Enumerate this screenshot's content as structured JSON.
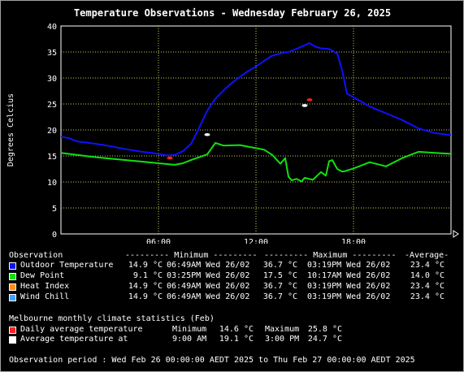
{
  "chart_data": {
    "type": "line",
    "title": "Temperature Observations - Wednesday February 26, 2025",
    "ylabel": "Degrees Celcius",
    "xlabel": "",
    "x_ticks": [
      "06:00",
      "12:00",
      "18:00"
    ],
    "y_ticks": [
      0,
      5,
      10,
      15,
      20,
      25,
      30,
      35,
      40
    ],
    "xlim_hours": [
      0,
      24
    ],
    "ylim": [
      0,
      40
    ],
    "grid": true,
    "background": "#000000",
    "grid_color": "#c8d060",
    "series": [
      {
        "name": "Outdoor Temperature",
        "color": "#1010ff",
        "x": [
          0,
          0.5,
          1,
          2,
          3,
          4,
          5,
          6,
          6.5,
          7,
          7.5,
          8,
          8.5,
          9,
          9.5,
          10,
          10.5,
          11,
          11.5,
          12,
          12.5,
          13,
          13.5,
          14,
          14.5,
          15,
          15.3,
          15.6,
          16,
          16.5,
          17,
          17.3,
          17.6,
          18,
          18.5,
          19,
          20,
          21,
          22,
          23,
          24
        ],
        "values": [
          18.7,
          18.4,
          17.8,
          17.4,
          16.9,
          16.3,
          15.8,
          15.4,
          15.1,
          15.2,
          15.9,
          17.3,
          20.4,
          23.7,
          26.0,
          27.6,
          29.0,
          30.2,
          31.3,
          32.2,
          33.3,
          34.3,
          34.7,
          35.0,
          35.6,
          36.3,
          36.7,
          36.1,
          35.7,
          35.6,
          34.7,
          31.5,
          27.0,
          26.3,
          25.4,
          24.5,
          23.2,
          21.9,
          20.3,
          19.4,
          19.0
        ]
      },
      {
        "name": "Dew Point",
        "color": "#10e010",
        "x": [
          0,
          1,
          2,
          3,
          4,
          5,
          6,
          7,
          7.5,
          8,
          9,
          9.5,
          10,
          11,
          12,
          12.5,
          13,
          13.5,
          13.8,
          14,
          14.2,
          14.5,
          14.8,
          15,
          15.5,
          16,
          16.3,
          16.5,
          16.7,
          17,
          17.3,
          17.5,
          18,
          19,
          20,
          21,
          22,
          23,
          24
        ],
        "values": [
          15.6,
          15.2,
          14.8,
          14.5,
          14.2,
          13.9,
          13.6,
          13.3,
          13.6,
          14.2,
          15.3,
          17.5,
          17.0,
          17.1,
          16.5,
          16.2,
          15.2,
          13.5,
          14.6,
          11.0,
          10.3,
          10.6,
          10.1,
          10.8,
          10.4,
          11.9,
          11.2,
          14.0,
          14.2,
          12.5,
          12.0,
          12.1,
          12.6,
          13.8,
          13.0,
          14.6,
          15.8,
          15.6,
          15.4
        ]
      }
    ],
    "markers": [
      {
        "series": "Daily average temperature",
        "color": "#ff2020",
        "x": 6.7,
        "y": 14.6
      },
      {
        "series": "Daily average temperature",
        "color": "#ff2020",
        "x": 15.3,
        "y": 25.8
      },
      {
        "series": "Average temperature at",
        "color": "#ffffff",
        "x": 9.0,
        "y": 19.1
      },
      {
        "series": "Average temperature at",
        "color": "#ffffff",
        "x": 15.0,
        "y": 24.7
      }
    ]
  },
  "observations": {
    "header": {
      "label": "Observation",
      "minimum": "--------- Minimum ---------",
      "maximum": "--------- Maximum ---------",
      "average": "-Average-"
    },
    "rows": [
      {
        "name": "Outdoor Temperature",
        "color": "#1010ff",
        "min_value": "14.9 °C",
        "min_time": "06:49AM Wed 26/02",
        "max_value": "36.7 °C",
        "max_time": "03:19PM Wed 26/02",
        "average": "23.4 °C"
      },
      {
        "name": "Dew Point",
        "color": "#10e010",
        "min_value": "9.1 °C",
        "min_time": "03:25PM Wed 26/02",
        "max_value": "17.5 °C",
        "max_time": "10:17AM Wed 26/02",
        "average": "14.0 °C"
      },
      {
        "name": "Heat Index",
        "color": "#ff8c1a",
        "min_value": "14.9 °C",
        "min_time": "06:49AM Wed 26/02",
        "max_value": "36.7 °C",
        "max_time": "03:19PM Wed 26/02",
        "average": "23.4 °C"
      },
      {
        "name": "Wind Chill",
        "color": "#40a0ff",
        "min_value": "14.9 °C",
        "min_time": "06:49AM Wed 26/02",
        "max_value": "36.7 °C",
        "max_time": "03:19PM Wed 26/02",
        "average": "23.4 °C"
      }
    ]
  },
  "climate": {
    "title": "Melbourne monthly climate statistics (Feb)",
    "rows": [
      {
        "label": "Daily average temperature",
        "color": "#ff2020",
        "min_label": "Minimum",
        "min_value": "14.6 °C",
        "max_label": "Maximum",
        "max_value": "25.8 °C"
      },
      {
        "label": "Average temperature at",
        "color": "#ffffff",
        "min_label": "9:00 AM",
        "min_value": "19.1 °C",
        "max_label": "3:00 PM",
        "max_value": "24.7 °C"
      }
    ]
  },
  "period": "Observation period : Wed Feb 26 00:00:00 AEDT 2025 to Thu Feb 27 00:00:00 AEDT 2025"
}
